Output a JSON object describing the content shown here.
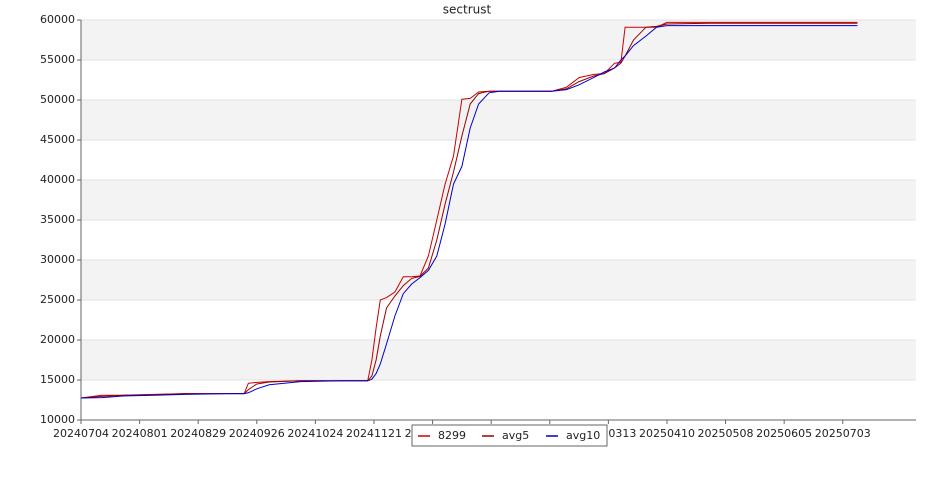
{
  "chart_data": {
    "type": "line",
    "title": "sectrust",
    "x": [
      "20240704",
      "20240714",
      "20240724",
      "20240808",
      "20240823",
      "20240912",
      "20240920",
      "20240922",
      "20240926",
      "20241002",
      "20241017",
      "20241106",
      "20241118",
      "20241120",
      "20241122",
      "20241124",
      "20241127",
      "20241201",
      "20241205",
      "20241209",
      "20241213",
      "20241217",
      "20241221",
      "20241225",
      "20241229",
      "20250102",
      "20250106",
      "20250110",
      "20250115",
      "20250120",
      "20250130",
      "20250214",
      "20250221",
      "20250227",
      "20250306",
      "20250311",
      "20250316",
      "20250319",
      "20250321",
      "20250325",
      "20250331",
      "20250405",
      "20250410",
      "20250430",
      "20250609",
      "20250710"
    ],
    "series": [
      {
        "name": "8299",
        "color": "#cc0000",
        "values": [
          12750,
          13100,
          13100,
          13200,
          13300,
          13300,
          13300,
          14600,
          14700,
          14800,
          14900,
          14900,
          14900,
          17500,
          21500,
          25000,
          25300,
          26000,
          27900,
          27900,
          28000,
          30500,
          35000,
          39500,
          43000,
          50100,
          50200,
          51000,
          51100,
          51100,
          51100,
          51100,
          51600,
          52800,
          53200,
          53300,
          54600,
          54700,
          59100,
          59100,
          59100,
          59100,
          59700,
          59700,
          59700,
          59700
        ]
      },
      {
        "name": "avg5",
        "color": "#990000",
        "values": [
          12750,
          12950,
          13100,
          13150,
          13300,
          13300,
          13300,
          13800,
          14500,
          14750,
          14900,
          14900,
          14900,
          15500,
          17500,
          20500,
          24000,
          25500,
          26800,
          27700,
          27950,
          29000,
          32500,
          37000,
          41000,
          45500,
          49500,
          50800,
          51100,
          51100,
          51100,
          51100,
          51400,
          52300,
          53000,
          53300,
          54000,
          54600,
          55500,
          57500,
          59100,
          59200,
          59500,
          59600,
          59600,
          59600
        ]
      },
      {
        "name": "avg10",
        "color": "#0000cc",
        "values": [
          12750,
          12800,
          13000,
          13100,
          13200,
          13300,
          13300,
          13400,
          13900,
          14400,
          14800,
          14900,
          14900,
          15100,
          15800,
          17000,
          19500,
          23000,
          25800,
          27000,
          27800,
          28700,
          30500,
          34500,
          39500,
          41700,
          46500,
          49500,
          50900,
          51100,
          51100,
          51100,
          51300,
          51900,
          52800,
          53500,
          54000,
          55000,
          55500,
          56800,
          58000,
          59100,
          59300,
          59300,
          59300,
          59300
        ]
      }
    ],
    "xlim": [
      "20240704",
      "20250807"
    ],
    "xticks": [
      "20240704",
      "20240801",
      "20240829",
      "20240926",
      "20241024",
      "20241121",
      "20241219",
      "20250116",
      "20250213",
      "20250313",
      "20250410",
      "20250508",
      "20250605",
      "20250703"
    ],
    "ylim": [
      10000,
      60000
    ],
    "yticks": [
      10000,
      15000,
      20000,
      25000,
      30000,
      35000,
      40000,
      45000,
      50000,
      55000,
      60000
    ],
    "grid": true,
    "legend": "bottom"
  }
}
